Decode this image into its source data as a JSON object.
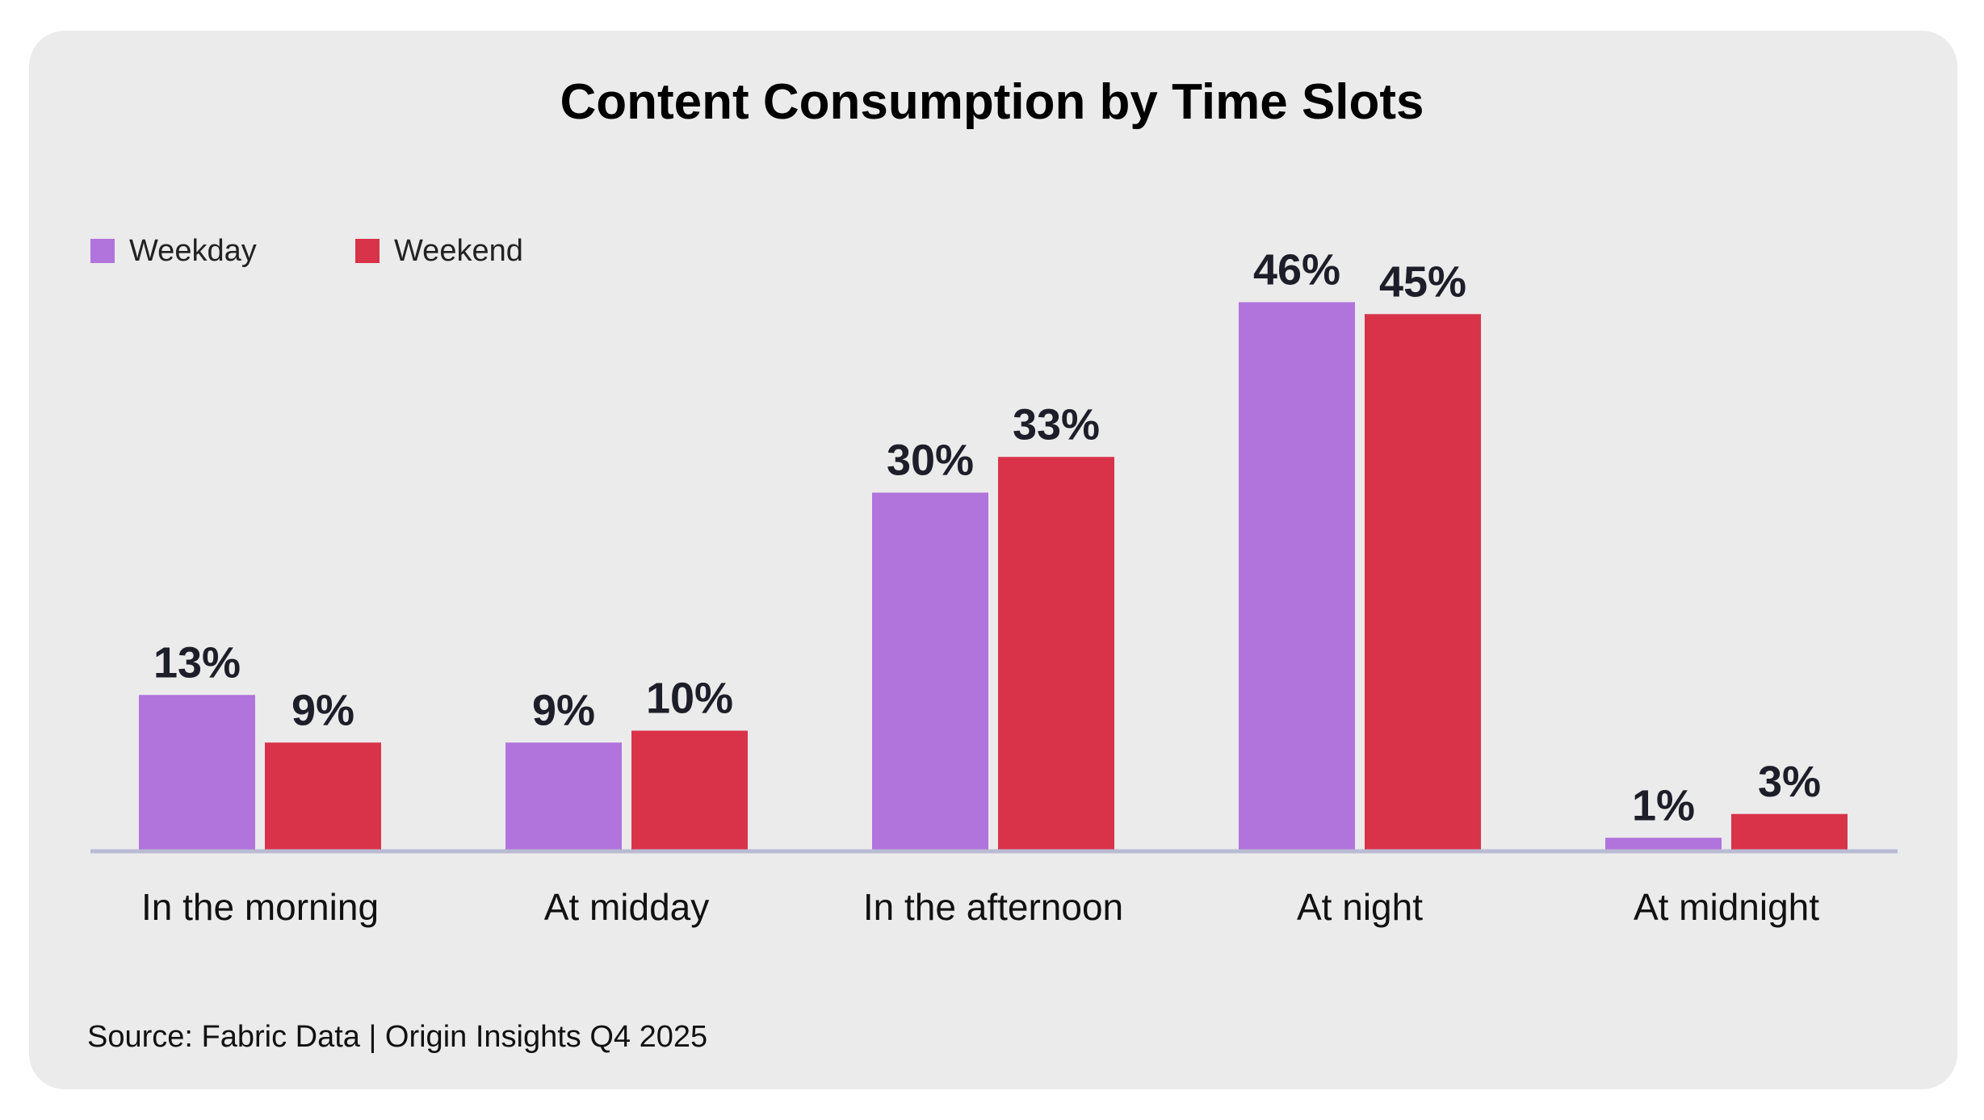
{
  "chart_data": {
    "type": "bar",
    "title": "Content Consumption by Time Slots",
    "categories": [
      "In the morning",
      "At midday",
      "In the afternoon",
      "At night",
      "At midnight"
    ],
    "series": [
      {
        "name": "Weekday",
        "values": [
          13,
          9,
          30,
          46,
          1
        ],
        "labels": [
          "13%",
          "9%",
          "30%",
          "46%",
          "1%"
        ],
        "color": "#b173dc"
      },
      {
        "name": "Weekend",
        "values": [
          9,
          10,
          33,
          45,
          3
        ],
        "labels": [
          "9%",
          "10%",
          "33%",
          "45%",
          "3%"
        ],
        "color": "#d9334a"
      }
    ],
    "ylim": [
      0,
      50
    ],
    "grid": false,
    "legend": "top-left",
    "source": "Source: Fabric Data | Origin Insights Q4 2025"
  },
  "colors": {
    "background": "#ebebeb",
    "axis": "#b8bbd2",
    "value_label": "#1e1e2a",
    "category_label": "#111111"
  }
}
